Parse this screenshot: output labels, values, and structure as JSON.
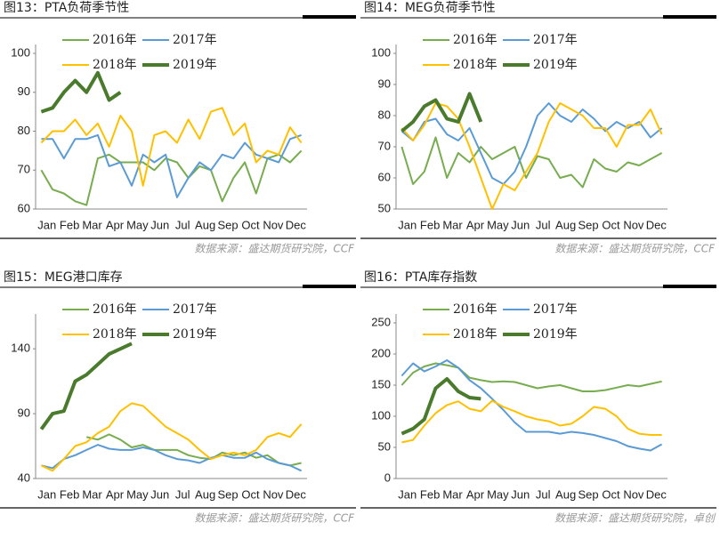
{
  "chart_data": [
    {
      "type": "line",
      "title": "图13：PTA负荷季节性",
      "source": "数据来源：盛达期货研究院，CCF",
      "categories": [
        "Jan",
        null,
        "Feb",
        null,
        "Mar",
        null,
        "Apr",
        null,
        "May",
        null,
        "Jun",
        null,
        "Jul",
        null,
        "Aug",
        null,
        "Sep",
        null,
        "Oct",
        null,
        "Nov",
        null,
        "Dec",
        null
      ],
      "ylim": [
        60,
        100
      ],
      "yticks": [
        60,
        70,
        80,
        90,
        100
      ],
      "series": [
        {
          "name": "2016年",
          "color": "#77ac4f",
          "values": [
            70,
            65,
            64,
            62,
            61,
            73,
            74,
            72,
            72,
            72,
            70,
            73,
            72,
            68,
            71,
            70,
            62,
            68,
            72,
            64,
            73,
            74,
            72,
            75
          ]
        },
        {
          "name": "2017年",
          "color": "#5b9bd5",
          "values": [
            78,
            78,
            73,
            78,
            78,
            79,
            71,
            72,
            66,
            74,
            72,
            74,
            63,
            68,
            72,
            70,
            74,
            73,
            77,
            74,
            73,
            72,
            78,
            79
          ]
        },
        {
          "name": "2018年",
          "color": "#ffc000",
          "values": [
            77,
            80,
            80,
            83,
            79,
            82,
            76,
            84,
            80,
            66,
            79,
            80,
            77,
            83,
            78,
            85,
            86,
            79,
            82,
            72,
            75,
            74,
            81,
            77
          ]
        },
        {
          "name": "2019年",
          "color": "#4a7a2c",
          "values": [
            85,
            86,
            90,
            93,
            90,
            95,
            88,
            90,
            null,
            null,
            null,
            null,
            null,
            null,
            null,
            null,
            null,
            null,
            null,
            null,
            null,
            null,
            null,
            null
          ]
        }
      ]
    },
    {
      "type": "line",
      "title": "图14：MEG负荷季节性",
      "source": "数据来源：盛达期货研究院，CCF",
      "categories": [
        "Jan",
        null,
        "Feb",
        null,
        "Mar",
        null,
        "Apr",
        null,
        "May",
        null,
        "Jun",
        null,
        "Jul",
        null,
        "Aug",
        null,
        "Sep",
        null,
        "Oct",
        null,
        "Nov",
        null,
        "Dec",
        null
      ],
      "ylim": [
        50,
        100
      ],
      "yticks": [
        50,
        60,
        70,
        80,
        90,
        100
      ],
      "series": [
        {
          "name": "2016年",
          "color": "#77ac4f",
          "values": [
            70,
            58,
            62,
            73,
            60,
            68,
            65,
            70,
            66,
            68,
            70,
            60,
            67,
            66,
            60,
            61,
            57,
            66,
            63,
            62,
            65,
            64,
            66,
            68
          ]
        },
        {
          "name": "2017年",
          "color": "#5b9bd5",
          "values": [
            75,
            72,
            78,
            79,
            74,
            72,
            76,
            68,
            60,
            58,
            62,
            70,
            80,
            84,
            80,
            78,
            82,
            79,
            75,
            78,
            76,
            78,
            73,
            76
          ]
        },
        {
          "name": "2018年",
          "color": "#ffc000",
          "values": [
            76,
            72,
            77,
            84,
            83,
            79,
            70,
            60,
            50,
            58,
            56,
            62,
            68,
            78,
            84,
            82,
            80,
            76,
            76,
            70,
            77,
            77,
            82,
            74
          ]
        },
        {
          "name": "2019年",
          "color": "#4a7a2c",
          "values": [
            75,
            78,
            83,
            85,
            79,
            78,
            87,
            78,
            null,
            null,
            null,
            null,
            null,
            null,
            null,
            null,
            null,
            null,
            null,
            null,
            null,
            null,
            null,
            null
          ]
        }
      ]
    },
    {
      "type": "line",
      "title": "图15：MEG港口库存",
      "source": "数据来源：盛达期货研究院，CCF",
      "categories": [
        "Jan",
        null,
        "Feb",
        null,
        "Mar",
        null,
        "Apr",
        null,
        "May",
        null,
        "Jun",
        null,
        "Jul",
        null,
        "Aug",
        null,
        "Sep",
        null,
        "Oct",
        null,
        "Nov",
        null,
        "Dec",
        null
      ],
      "ylim": [
        40,
        160
      ],
      "yticks": [
        40,
        90,
        140
      ],
      "series": [
        {
          "name": "2016年",
          "color": "#77ac4f",
          "values": [
            null,
            null,
            null,
            null,
            72,
            70,
            74,
            70,
            64,
            66,
            62,
            62,
            62,
            58,
            56,
            55,
            60,
            58,
            60,
            56,
            58,
            52,
            50,
            52
          ]
        },
        {
          "name": "2017年",
          "color": "#5b9bd5",
          "values": [
            50,
            48,
            55,
            58,
            62,
            66,
            63,
            62,
            62,
            64,
            62,
            58,
            55,
            54,
            52,
            56,
            58,
            56,
            56,
            60,
            55,
            52,
            50,
            46
          ]
        },
        {
          "name": "2018年",
          "color": "#ffc000",
          "values": [
            50,
            46,
            55,
            65,
            68,
            75,
            80,
            92,
            98,
            96,
            88,
            80,
            75,
            70,
            62,
            55,
            58,
            60,
            58,
            62,
            72,
            75,
            72,
            82
          ]
        },
        {
          "name": "2019年",
          "color": "#4a7a2c",
          "values": [
            78,
            90,
            92,
            115,
            120,
            128,
            136,
            140,
            144,
            null,
            null,
            null,
            null,
            null,
            null,
            null,
            null,
            null,
            null,
            null,
            null,
            null,
            null,
            null
          ]
        }
      ]
    },
    {
      "type": "line",
      "title": "图16：PTA库存指数",
      "source": "数据来源：盛达期货研究院，卓创",
      "categories": [
        "Jan",
        null,
        "Feb",
        null,
        "Mar",
        null,
        "Apr",
        null,
        "May",
        null,
        "Jun",
        null,
        "Jul",
        null,
        "Aug",
        null,
        "Sep",
        null,
        "Oct",
        null,
        "Nov",
        null,
        "Dec",
        null
      ],
      "ylim": [
        0,
        250
      ],
      "yticks": [
        0,
        50,
        100,
        150,
        200,
        250
      ],
      "series": [
        {
          "name": "2016年",
          "color": "#77ac4f",
          "values": [
            150,
            170,
            180,
            185,
            182,
            178,
            162,
            158,
            155,
            156,
            155,
            150,
            145,
            148,
            150,
            145,
            140,
            140,
            142,
            146,
            150,
            148,
            152,
            156
          ]
        },
        {
          "name": "2017年",
          "color": "#5b9bd5",
          "values": [
            165,
            185,
            172,
            180,
            190,
            178,
            158,
            145,
            128,
            110,
            90,
            75,
            75,
            75,
            72,
            75,
            73,
            70,
            65,
            60,
            52,
            48,
            45,
            55
          ]
        },
        {
          "name": "2018年",
          "color": "#ffc000",
          "values": [
            58,
            62,
            85,
            105,
            118,
            124,
            112,
            108,
            125,
            115,
            108,
            100,
            95,
            92,
            85,
            88,
            100,
            115,
            112,
            100,
            80,
            72,
            70,
            70
          ]
        },
        {
          "name": "2019年",
          "color": "#4a7a2c",
          "values": [
            72,
            80,
            95,
            145,
            160,
            140,
            130,
            128,
            null,
            null,
            null,
            null,
            null,
            null,
            null,
            null,
            null,
            null,
            null,
            null,
            null,
            null,
            null,
            null
          ]
        }
      ]
    }
  ]
}
